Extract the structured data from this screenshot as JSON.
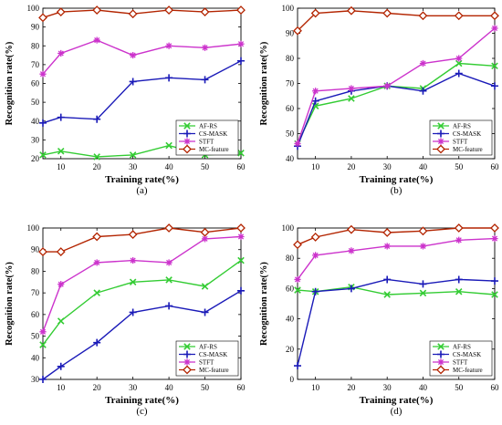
{
  "series_styles": [
    {
      "name": "AF-RS",
      "color": "#33cc33",
      "marker": "x"
    },
    {
      "name": "CS-MASK",
      "color": "#1a1ab8",
      "marker": "plus"
    },
    {
      "name": "STFT",
      "color": "#cc33cc",
      "marker": "star"
    },
    {
      "name": "MC-feature",
      "color": "#b32400",
      "marker": "diamond"
    }
  ],
  "chart_data": [
    {
      "type": "line",
      "caption": "(a)",
      "xlabel": "Training rate(%)",
      "ylabel": "Recognition rate(%)",
      "x": [
        5,
        10,
        20,
        30,
        40,
        50,
        60
      ],
      "xticks": [
        10,
        20,
        30,
        40,
        50,
        60
      ],
      "xlim": [
        5,
        60
      ],
      "ylim": [
        20,
        100
      ],
      "yticks": [
        20,
        30,
        40,
        50,
        60,
        70,
        80,
        90,
        100
      ],
      "grid": false,
      "legend": "bottom-right",
      "series": [
        {
          "name": "AF-RS",
          "values": [
            22,
            24,
            21,
            22,
            27,
            22,
            23
          ]
        },
        {
          "name": "CS-MASK",
          "values": [
            39,
            42,
            41,
            61,
            63,
            62,
            72
          ]
        },
        {
          "name": "STFT",
          "values": [
            65,
            76,
            83,
            75,
            80,
            79,
            81
          ]
        },
        {
          "name": "MC-feature",
          "values": [
            95,
            98,
            99,
            97,
            99,
            98,
            99
          ]
        }
      ]
    },
    {
      "type": "line",
      "caption": "(b)",
      "xlabel": "Training rate(%)",
      "ylabel": "Recognition rate(%)",
      "x": [
        5,
        10,
        20,
        30,
        40,
        50,
        60
      ],
      "xticks": [
        10,
        20,
        30,
        40,
        50,
        60
      ],
      "xlim": [
        5,
        60
      ],
      "ylim": [
        40,
        100
      ],
      "yticks": [
        40,
        50,
        60,
        70,
        80,
        90,
        100
      ],
      "grid": false,
      "legend": "bottom-right",
      "series": [
        {
          "name": "AF-RS",
          "values": [
            46,
            61,
            64,
            69,
            68,
            78,
            77
          ]
        },
        {
          "name": "CS-MASK",
          "values": [
            45,
            63,
            67,
            69,
            67,
            74,
            69
          ]
        },
        {
          "name": "STFT",
          "values": [
            46,
            67,
            68,
            69,
            78,
            80,
            92
          ]
        },
        {
          "name": "MC-feature",
          "values": [
            91,
            98,
            99,
            98,
            97,
            97,
            97
          ]
        }
      ]
    },
    {
      "type": "line",
      "caption": "(c)",
      "xlabel": "Training rate(%)",
      "ylabel": "Recognition rate(%)",
      "x": [
        5,
        10,
        20,
        30,
        40,
        50,
        60
      ],
      "xticks": [
        10,
        20,
        30,
        40,
        50,
        60
      ],
      "xlim": [
        5,
        60
      ],
      "ylim": [
        30,
        100
      ],
      "yticks": [
        30,
        40,
        50,
        60,
        70,
        80,
        90,
        100
      ],
      "grid": false,
      "legend": "bottom-right",
      "series": [
        {
          "name": "AF-RS",
          "values": [
            46,
            57,
            70,
            75,
            76,
            73,
            85
          ]
        },
        {
          "name": "CS-MASK",
          "values": [
            30,
            36,
            47,
            61,
            64,
            61,
            71
          ]
        },
        {
          "name": "STFT",
          "values": [
            52,
            74,
            84,
            85,
            84,
            95,
            96
          ]
        },
        {
          "name": "MC-feature",
          "values": [
            89,
            89,
            96,
            97,
            100,
            98,
            100
          ]
        }
      ]
    },
    {
      "type": "line",
      "caption": "(d)",
      "xlabel": "Training rate(%)",
      "ylabel": "Recognition rate(%)",
      "x": [
        5,
        10,
        20,
        30,
        40,
        50,
        60
      ],
      "xticks": [
        10,
        20,
        30,
        40,
        50,
        60
      ],
      "xlim": [
        5,
        60
      ],
      "ylim": [
        0,
        100
      ],
      "yticks": [
        0,
        20,
        40,
        60,
        80,
        100
      ],
      "grid": false,
      "legend": "bottom-right",
      "series": [
        {
          "name": "AF-RS",
          "values": [
            59,
            58,
            61,
            56,
            57,
            58,
            56
          ]
        },
        {
          "name": "CS-MASK",
          "values": [
            9,
            58,
            60,
            66,
            63,
            66,
            65
          ]
        },
        {
          "name": "STFT",
          "values": [
            66,
            82,
            85,
            88,
            88,
            92,
            93
          ]
        },
        {
          "name": "MC-feature",
          "values": [
            89,
            94,
            99,
            97,
            98,
            100,
            100
          ]
        }
      ]
    }
  ]
}
